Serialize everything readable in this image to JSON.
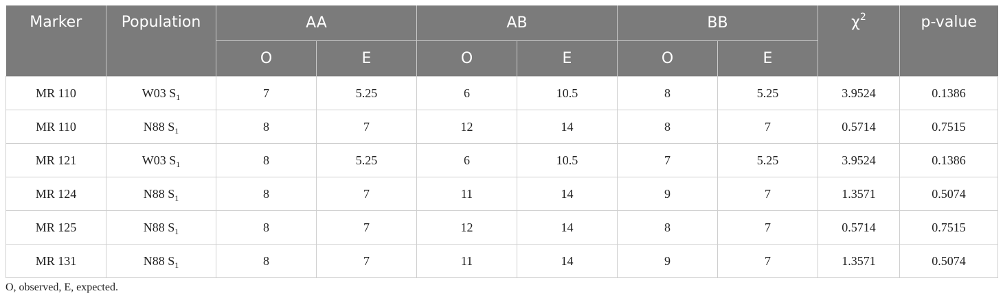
{
  "table": {
    "headers": {
      "marker": "Marker",
      "population": "Population",
      "groups": [
        "AA",
        "AB",
        "BB"
      ],
      "chi_symbol": "χ",
      "chi_power": "2",
      "p_value": "p-value",
      "sub": [
        "O",
        "E",
        "O",
        "E",
        "O",
        "E"
      ]
    },
    "rows": [
      {
        "marker": "MR 110",
        "population": "W03 S",
        "population_sub": "1",
        "cells": [
          "7",
          "5.25",
          "6",
          "10.5",
          "8",
          "5.25",
          "3.9524",
          "0.1386"
        ]
      },
      {
        "marker": "MR 110",
        "population": "N88 S",
        "population_sub": "1",
        "cells": [
          "8",
          "7",
          "12",
          "14",
          "8",
          "7",
          "0.5714",
          "0.7515"
        ]
      },
      {
        "marker": "MR 121",
        "population": "W03 S",
        "population_sub": "1",
        "cells": [
          "8",
          "5.25",
          "6",
          "10.5",
          "7",
          "5.25",
          "3.9524",
          "0.1386"
        ]
      },
      {
        "marker": "MR 124",
        "population": "N88 S",
        "population_sub": "1",
        "cells": [
          "8",
          "7",
          "11",
          "14",
          "9",
          "7",
          "1.3571",
          "0.5074"
        ]
      },
      {
        "marker": "MR 125",
        "population": "N88 S",
        "population_sub": "1",
        "cells": [
          "8",
          "7",
          "12",
          "14",
          "8",
          "7",
          "0.5714",
          "0.7515"
        ]
      },
      {
        "marker": "MR 131",
        "population": "N88 S",
        "population_sub": "1",
        "cells": [
          "8",
          "7",
          "11",
          "14",
          "9",
          "7",
          "1.3571",
          "0.5074"
        ]
      }
    ]
  },
  "footnote": "O, observed, E, expected.",
  "colors": {
    "header_bg": "#7b7b7b",
    "header_text": "#ffffff",
    "border": "#cfcfcf"
  }
}
